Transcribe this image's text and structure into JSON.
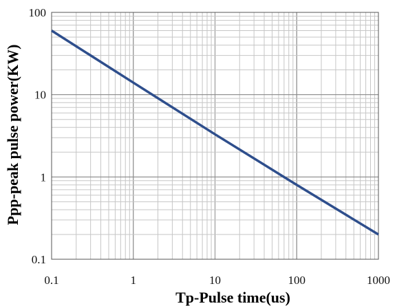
{
  "chart_data": {
    "type": "line",
    "title": "",
    "xlabel": "Tp-Pulse time(us)",
    "ylabel": "Ppp-peak pulse power(KW)",
    "x_scale": "log",
    "y_scale": "log",
    "xlim": [
      0.1,
      1000
    ],
    "ylim": [
      0.1,
      100
    ],
    "x_ticks": [
      {
        "value": 0.1,
        "label": "0.1"
      },
      {
        "value": 1,
        "label": "1"
      },
      {
        "value": 10,
        "label": "10"
      },
      {
        "value": 100,
        "label": "100"
      },
      {
        "value": 1000,
        "label": "1000"
      }
    ],
    "y_ticks": [
      {
        "value": 0.1,
        "label": "0.1"
      },
      {
        "value": 1,
        "label": "1"
      },
      {
        "value": 10,
        "label": "10"
      },
      {
        "value": 100,
        "label": "100"
      }
    ],
    "grid": true,
    "legend": "none",
    "series": [
      {
        "x": [
          0.1,
          1,
          10,
          100,
          1000
        ],
        "y": [
          60,
          14,
          3.3,
          0.8,
          0.2
        ],
        "color": "#2e4e8c"
      }
    ]
  }
}
